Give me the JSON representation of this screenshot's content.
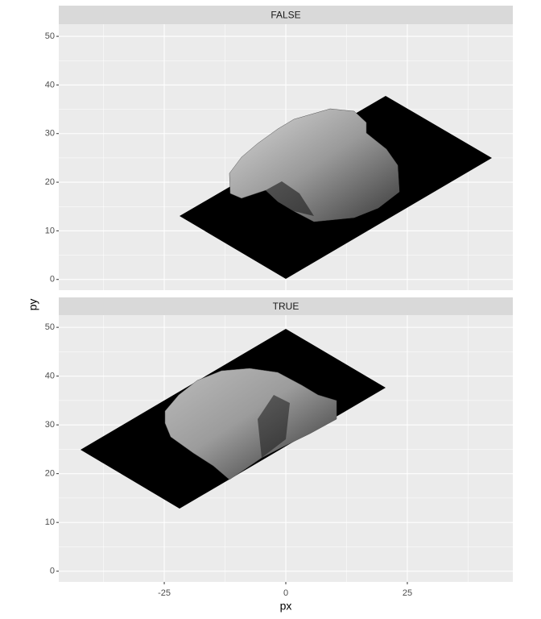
{
  "chart_data": {
    "type": "image",
    "facets": [
      "FALSE",
      "TRUE"
    ],
    "xlabel": "px",
    "ylabel": "py",
    "xlim": [
      -46.7,
      46.7
    ],
    "xticks": [
      -25,
      0,
      25
    ],
    "ylim": [
      -2.2,
      52.5
    ],
    "yticks": [
      0,
      10,
      20,
      30,
      40,
      50
    ],
    "grid": true
  }
}
